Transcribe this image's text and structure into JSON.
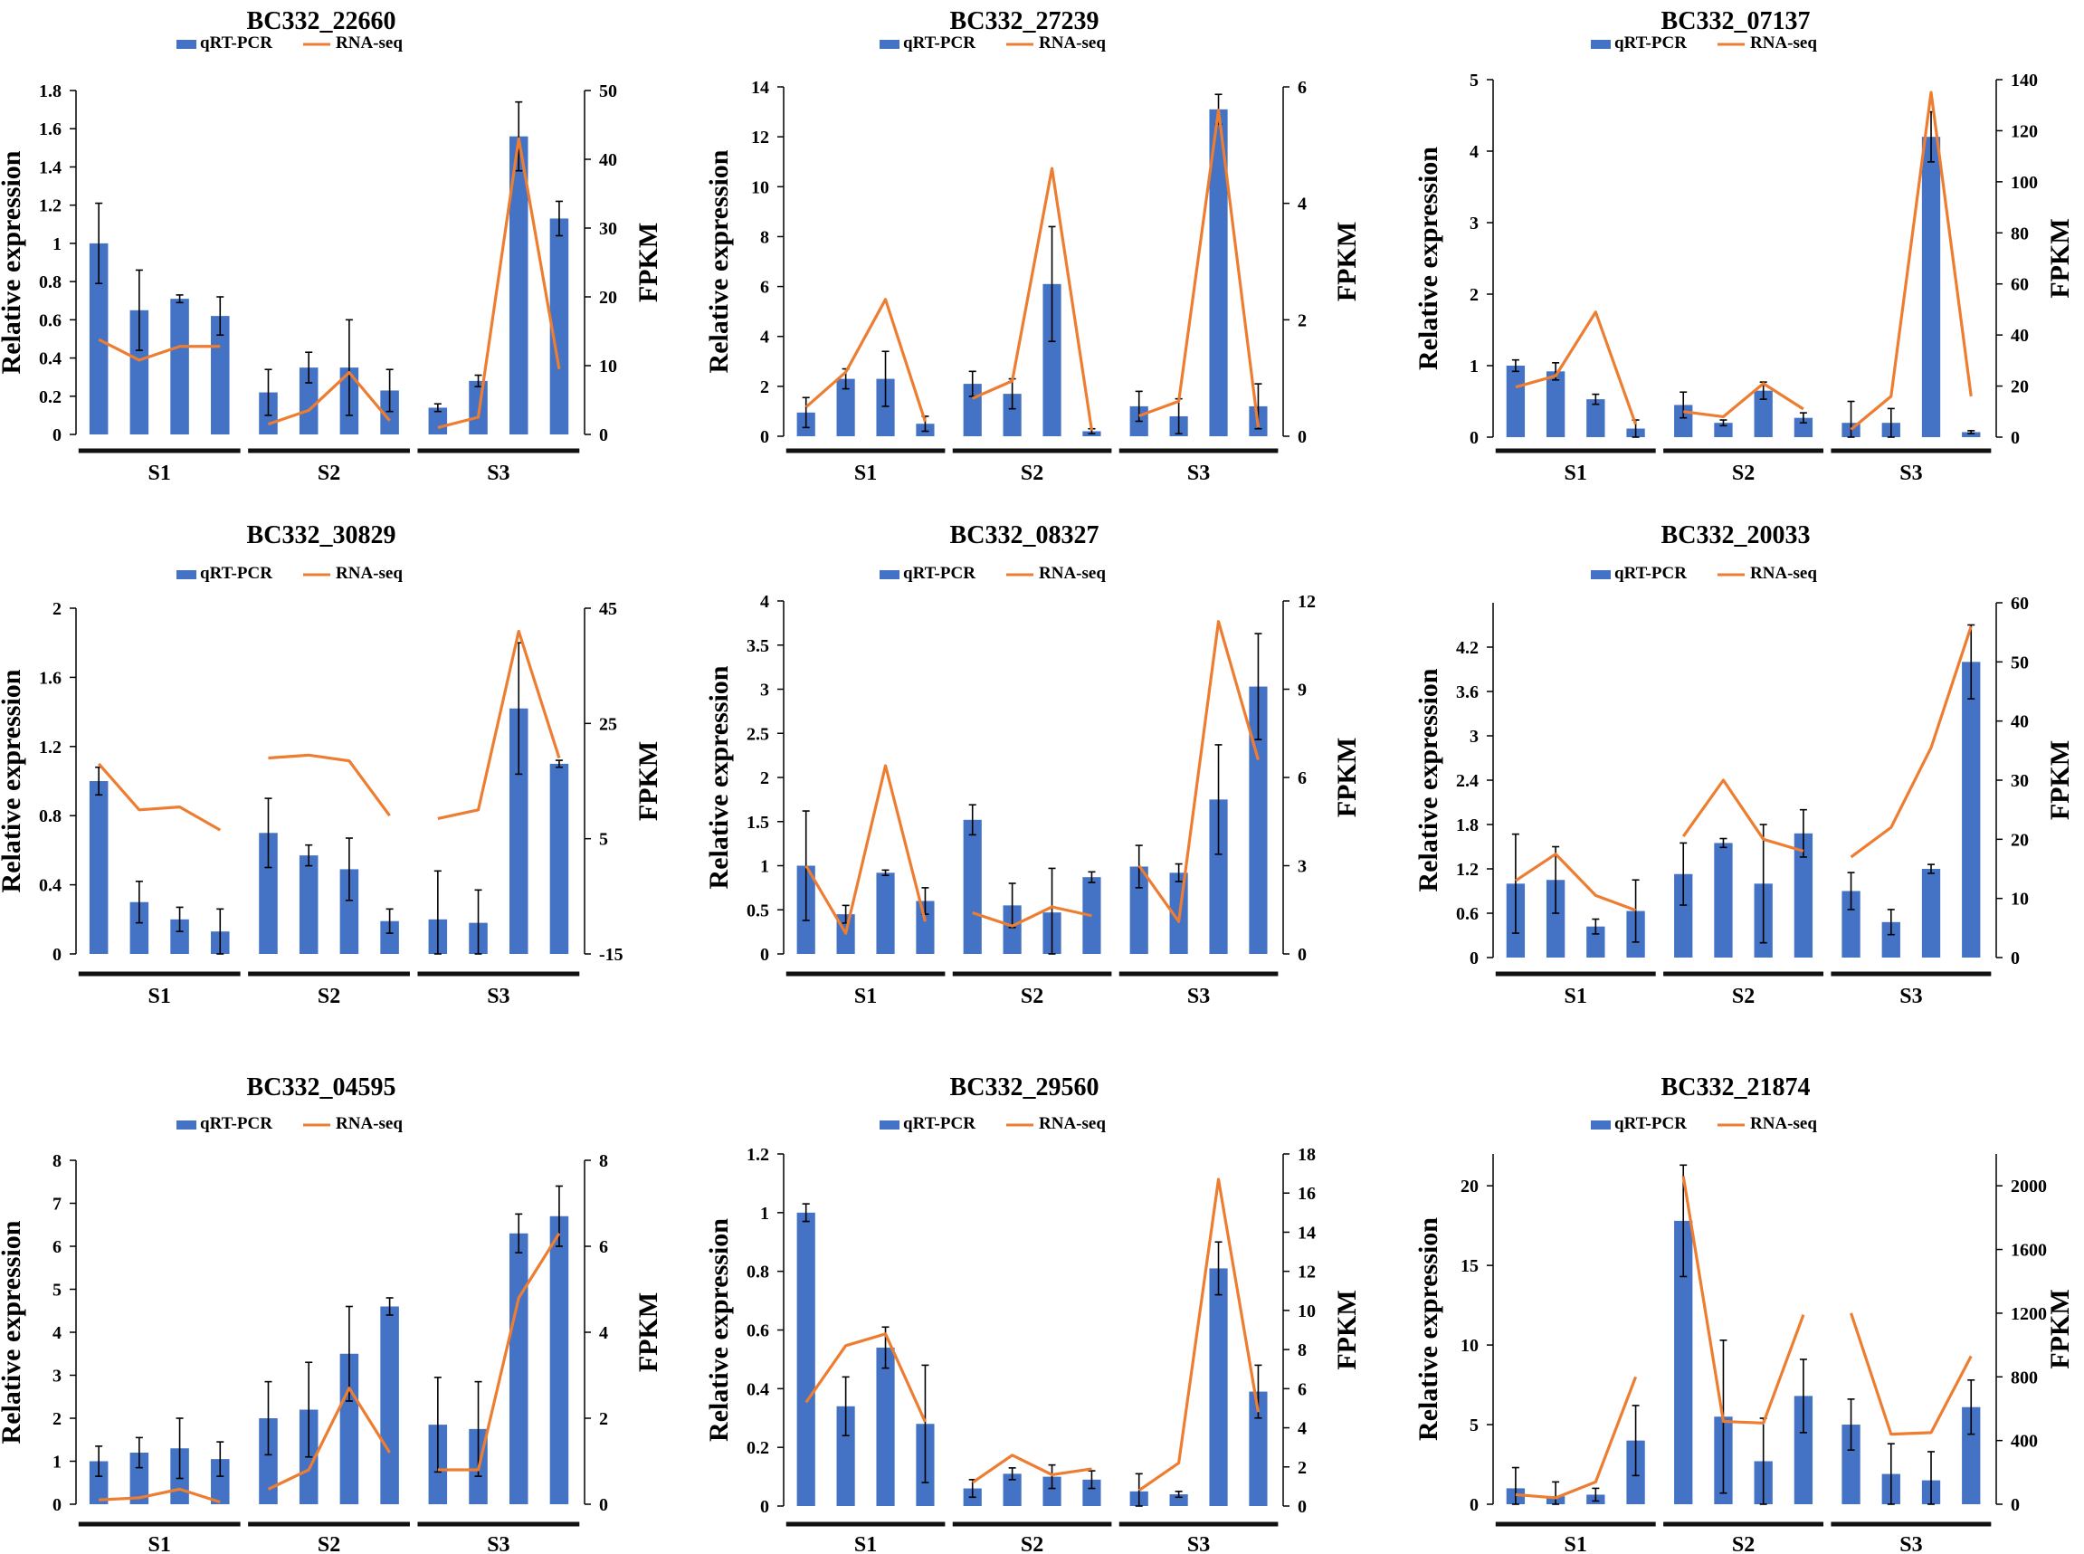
{
  "colors": {
    "bar": "#4472C4",
    "line": "#ED7D31",
    "axis": "#000000",
    "group_bar": "#111111"
  },
  "chart_data": [
    {
      "type": "bar+line",
      "title": "BC332_22660",
      "legend": [
        "qRT-PCR",
        "RNA-seq"
      ],
      "ylabel": "Relative expression",
      "y2label": "FPKM",
      "ylim": [
        0,
        1.8
      ],
      "yticks": [
        "0",
        "0.2",
        "0.4",
        "0.6",
        "0.8",
        "1",
        "1.2",
        "1.4",
        "1.6",
        "1.8"
      ],
      "y2lim": [
        0,
        50
      ],
      "y2ticks": [
        "0",
        "10",
        "20",
        "30",
        "40",
        "50"
      ],
      "groups": [
        "S1",
        "S2",
        "S3"
      ],
      "series": [
        {
          "name": "qRT-PCR",
          "values": [
            [
              1.0,
              0.65,
              0.71,
              0.62
            ],
            [
              0.22,
              0.35,
              0.35,
              0.23
            ],
            [
              0.14,
              0.28,
              1.56,
              1.13
            ]
          ],
          "errors": [
            [
              0.21,
              0.21,
              0.02,
              0.1
            ],
            [
              0.12,
              0.08,
              0.25,
              0.11
            ],
            [
              0.02,
              0.03,
              0.18,
              0.09
            ]
          ]
        },
        {
          "name": "RNA-seq",
          "values": [
            [
              13.8,
              10.8,
              12.8,
              12.8
            ],
            [
              1.5,
              3.5,
              9.0,
              2.0
            ],
            [
              1.0,
              2.5,
              43.0,
              9.5
            ]
          ]
        }
      ]
    },
    {
      "type": "bar+line",
      "title": "BC332_27239",
      "legend": [
        "qRT-PCR",
        "RNA-seq"
      ],
      "ylabel": "Relative expression",
      "y2label": "FPKM",
      "ylim": [
        0,
        14
      ],
      "yticks": [
        "0",
        "2",
        "4",
        "6",
        "8",
        "10",
        "12",
        "14"
      ],
      "y2lim": [
        0,
        6
      ],
      "y2ticks": [
        "0",
        "2",
        "4",
        "6"
      ],
      "groups": [
        "S1",
        "S2",
        "S3"
      ],
      "series": [
        {
          "name": "qRT-PCR",
          "values": [
            [
              0.95,
              2.3,
              2.3,
              0.5
            ],
            [
              2.1,
              1.7,
              6.1,
              0.2
            ],
            [
              1.2,
              0.8,
              13.1,
              1.2
            ]
          ],
          "errors": [
            [
              0.6,
              0.4,
              1.1,
              0.3
            ],
            [
              0.5,
              0.6,
              2.3,
              0.1
            ],
            [
              0.6,
              0.7,
              0.6,
              0.9
            ]
          ]
        },
        {
          "name": "RNA-seq",
          "values": [
            [
              0.5,
              1.1,
              2.35,
              0.25
            ],
            [
              0.65,
              0.95,
              4.6,
              0.1
            ],
            [
              0.35,
              0.6,
              5.6,
              0.15
            ]
          ]
        }
      ]
    },
    {
      "type": "bar+line",
      "title": "BC332_07137",
      "legend": [
        "qRT-PCR",
        "RNA-seq"
      ],
      "ylabel": "Relative expression",
      "y2label": "FPKM",
      "ylim": [
        0,
        5
      ],
      "yticks": [
        "0",
        "1",
        "2",
        "3",
        "4",
        "5"
      ],
      "y2lim": [
        0,
        140
      ],
      "y2ticks": [
        "0",
        "20",
        "40",
        "60",
        "80",
        "100",
        "120",
        "140"
      ],
      "groups": [
        "S1",
        "S2",
        "S3"
      ],
      "series": [
        {
          "name": "qRT-PCR",
          "values": [
            [
              1.0,
              0.92,
              0.53,
              0.12
            ],
            [
              0.45,
              0.2,
              0.65,
              0.27
            ],
            [
              0.2,
              0.2,
              4.2,
              0.07
            ]
          ],
          "errors": [
            [
              0.08,
              0.12,
              0.07,
              0.12
            ],
            [
              0.18,
              0.04,
              0.12,
              0.07
            ],
            [
              0.3,
              0.2,
              0.35,
              0.02
            ]
          ]
        },
        {
          "name": "RNA-seq",
          "values": [
            [
              19.6,
              24.0,
              49.0,
              5.0
            ],
            [
              10.0,
              8.0,
              21.0,
              11.0
            ],
            [
              3.0,
              16.0,
              135.0,
              16.0
            ]
          ]
        }
      ]
    },
    {
      "type": "bar+line",
      "title": "BC332_30829",
      "legend": [
        "qRT-PCR",
        "RNA-seq"
      ],
      "ylabel": "Relative expression",
      "y2label": "FPKM",
      "ylim": [
        0,
        2
      ],
      "yticks": [
        "0",
        "0.4",
        "0.8",
        "1.2",
        "1.6",
        "2"
      ],
      "y2lim": [
        -15,
        45
      ],
      "y2ticks": [
        "-15",
        "5",
        "25",
        "45"
      ],
      "groups": [
        "S1",
        "S2",
        "S3"
      ],
      "series": [
        {
          "name": "qRT-PCR",
          "values": [
            [
              1.0,
              0.3,
              0.2,
              0.13
            ],
            [
              0.7,
              0.57,
              0.49,
              0.19
            ],
            [
              0.2,
              0.18,
              1.42,
              1.1
            ]
          ],
          "errors": [
            [
              0.08,
              0.12,
              0.07,
              0.13
            ],
            [
              0.2,
              0.06,
              0.18,
              0.07
            ],
            [
              0.28,
              0.19,
              0.38,
              0.02
            ]
          ]
        },
        {
          "name": "RNA-seq",
          "values": [
            [
              18.0,
              10.0,
              10.5,
              6.5
            ],
            [
              19.0,
              19.5,
              18.5,
              9.0
            ],
            [
              8.5,
              10.0,
              41.0,
              19.0
            ]
          ]
        }
      ]
    },
    {
      "type": "bar+line",
      "title": "BC332_08327",
      "legend": [
        "qRT-PCR",
        "RNA-seq"
      ],
      "ylabel": "Relative expression",
      "y2label": "FPKM",
      "ylim": [
        0,
        4
      ],
      "yticks": [
        "0",
        "0.5",
        "1",
        "1.5",
        "2",
        "2.5",
        "3",
        "3.5",
        "4"
      ],
      "y2lim": [
        0,
        12
      ],
      "y2ticks": [
        "0",
        "3",
        "6",
        "9",
        "12"
      ],
      "groups": [
        "S1",
        "S2",
        "S3"
      ],
      "series": [
        {
          "name": "qRT-PCR",
          "values": [
            [
              1.0,
              0.45,
              0.92,
              0.6
            ],
            [
              1.52,
              0.55,
              0.47,
              0.87
            ],
            [
              0.99,
              0.92,
              1.75,
              3.03
            ]
          ],
          "errors": [
            [
              0.62,
              0.1,
              0.03,
              0.15
            ],
            [
              0.17,
              0.25,
              0.5,
              0.06
            ],
            [
              0.24,
              0.1,
              0.62,
              0.6
            ]
          ]
        },
        {
          "name": "RNA-seq",
          "values": [
            [
              3.0,
              0.7,
              6.4,
              1.1
            ],
            [
              1.4,
              0.95,
              1.6,
              1.3
            ],
            [
              3.0,
              1.1,
              11.3,
              6.6
            ]
          ]
        }
      ]
    },
    {
      "type": "bar+line",
      "title": "BC332_20033",
      "legend": [
        "qRT-PCR",
        "RNA-seq"
      ],
      "ylabel": "Relative expression",
      "y2label": "FPKM",
      "ylim": [
        0,
        4.8
      ],
      "yticks": [
        "0",
        "0.6",
        "1.2",
        "1.8",
        "2.4",
        "3",
        "3.6",
        "4.2"
      ],
      "y2lim": [
        0,
        60
      ],
      "y2ticks": [
        "0",
        "10",
        "20",
        "30",
        "40",
        "50",
        "60"
      ],
      "groups": [
        "S1",
        "S2",
        "S3"
      ],
      "series": [
        {
          "name": "qRT-PCR",
          "values": [
            [
              1.0,
              1.05,
              0.42,
              0.63
            ],
            [
              1.13,
              1.55,
              1.0,
              1.68
            ],
            [
              0.9,
              0.48,
              1.2,
              4.0
            ]
          ],
          "errors": [
            [
              0.67,
              0.45,
              0.1,
              0.42
            ],
            [
              0.42,
              0.06,
              0.8,
              0.32
            ],
            [
              0.25,
              0.17,
              0.06,
              0.5
            ]
          ]
        },
        {
          "name": "RNA-seq",
          "values": [
            [
              13.0,
              17.5,
              10.5,
              8.0
            ],
            [
              20.5,
              30.0,
              20.0,
              18.0
            ],
            [
              17.0,
              22.0,
              35.5,
              56.0
            ]
          ]
        }
      ]
    },
    {
      "type": "bar+line",
      "title": "BC332_04595",
      "legend": [
        "qRT-PCR",
        "RNA-seq"
      ],
      "ylabel": "Relative expression",
      "y2label": "FPKM",
      "ylim": [
        0,
        8
      ],
      "yticks": [
        "0",
        "1",
        "2",
        "3",
        "4",
        "5",
        "6",
        "7",
        "8"
      ],
      "y2lim": [
        0,
        8
      ],
      "y2ticks": [
        "0",
        "2",
        "4",
        "6",
        "8"
      ],
      "groups": [
        "S1",
        "S2",
        "S3"
      ],
      "series": [
        {
          "name": "qRT-PCR",
          "values": [
            [
              1.0,
              1.2,
              1.3,
              1.05
            ],
            [
              2.0,
              2.2,
              3.5,
              4.6
            ],
            [
              1.85,
              1.75,
              6.3,
              6.7
            ]
          ],
          "errors": [
            [
              0.35,
              0.35,
              0.7,
              0.4
            ],
            [
              0.85,
              1.1,
              1.1,
              0.2
            ],
            [
              1.1,
              1.1,
              0.45,
              0.7
            ]
          ]
        },
        {
          "name": "RNA-seq",
          "values": [
            [
              0.1,
              0.15,
              0.35,
              0.05
            ],
            [
              0.35,
              0.8,
              2.7,
              1.2
            ],
            [
              0.8,
              0.8,
              4.8,
              6.3
            ]
          ]
        }
      ]
    },
    {
      "type": "bar+line",
      "title": "BC332_29560",
      "legend": [
        "qRT-PCR",
        "RNA-seq"
      ],
      "ylabel": "Relative expression",
      "y2label": "FPKM",
      "ylim": [
        0,
        1.2
      ],
      "yticks": [
        "0",
        "0.2",
        "0.4",
        "0.6",
        "0.8",
        "1",
        "1.2"
      ],
      "y2lim": [
        0,
        18
      ],
      "y2ticks": [
        "0",
        "2",
        "4",
        "6",
        "8",
        "10",
        "12",
        "14",
        "16",
        "18"
      ],
      "groups": [
        "S1",
        "S2",
        "S3"
      ],
      "series": [
        {
          "name": "qRT-PCR",
          "values": [
            [
              1.0,
              0.34,
              0.54,
              0.28
            ],
            [
              0.06,
              0.11,
              0.1,
              0.09
            ],
            [
              0.05,
              0.04,
              0.81,
              0.39
            ]
          ],
          "errors": [
            [
              0.03,
              0.1,
              0.07,
              0.2
            ],
            [
              0.03,
              0.02,
              0.04,
              0.03
            ],
            [
              0.06,
              0.01,
              0.09,
              0.09
            ]
          ]
        },
        {
          "name": "RNA-seq",
          "values": [
            [
              5.3,
              8.2,
              8.8,
              4.3
            ],
            [
              1.2,
              2.6,
              1.6,
              1.9
            ],
            [
              0.8,
              2.2,
              16.7,
              4.8
            ]
          ]
        }
      ]
    },
    {
      "type": "bar+line",
      "title": "BC332_21874",
      "legend": [
        "qRT-PCR",
        "RNA-seq"
      ],
      "ylabel": "Relative expression",
      "y2label": "FPKM",
      "ylim": [
        0,
        22
      ],
      "yticks": [
        "0",
        "5",
        "10",
        "15",
        "20"
      ],
      "y2lim": [
        0,
        2200
      ],
      "y2ticks": [
        "0",
        "400",
        "800",
        "1200",
        "1600",
        "2000"
      ],
      "groups": [
        "S1",
        "S2",
        "S3"
      ],
      "series": [
        {
          "name": "qRT-PCR",
          "values": [
            [
              1.0,
              0.5,
              0.6,
              4.0
            ],
            [
              17.8,
              5.5,
              2.7,
              6.8
            ],
            [
              5.0,
              1.9,
              1.5,
              6.1
            ]
          ],
          "errors": [
            [
              1.3,
              0.9,
              0.4,
              2.2
            ],
            [
              3.5,
              4.8,
              2.7,
              2.3
            ],
            [
              1.6,
              1.9,
              1.8,
              1.7
            ]
          ]
        },
        {
          "name": "RNA-seq",
          "values": [
            [
              60,
              40,
              140,
              800
            ],
            [
              2060,
              520,
              510,
              1190
            ],
            [
              1200,
              440,
              450,
              930
            ]
          ]
        }
      ]
    }
  ]
}
